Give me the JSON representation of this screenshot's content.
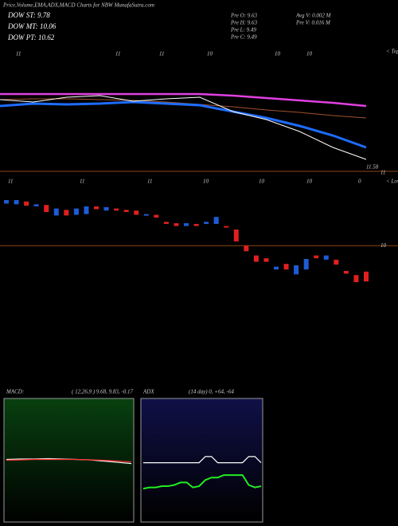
{
  "header": {
    "title": "Price,Volume,EMA,ADX,MACD Charts for NBW MunafaSutra.com",
    "dow": [
      "DOW ST: 9.78",
      "DOW MT: 10.06",
      "DOW PT: 10.62"
    ],
    "pre": [
      "Pre  O: 9.63",
      "Pre  H: 9.63",
      "Pre  L: 9.49",
      "Pre  C: 9.49"
    ],
    "volume": [
      "Avg V: 0.002  M",
      "Pre  V: 0.016  M"
    ]
  },
  "chart_data": [
    {
      "type": "line",
      "categories": [
        null,
        null,
        null,
        null,
        null,
        null,
        null,
        null,
        null,
        null,
        null,
        null
      ],
      "ylim": [
        0,
        160
      ],
      "top_labels": [
        "11",
        "11",
        "11",
        "10",
        "10",
        "10"
      ],
      "tops": "< Tops",
      "bottom_labels": [
        "11",
        "11",
        "11",
        "10",
        "10",
        "10",
        "0",
        "11"
      ],
      "lows": "< Lows",
      "annotation": "11.58",
      "series": [
        {
          "color": "#e040e0",
          "width": 2.5,
          "values": [
            97,
            97,
            97,
            97,
            97,
            97,
            97,
            95,
            92,
            89,
            86,
            82
          ]
        },
        {
          "color": "#a0522d",
          "width": 1,
          "values": [
            90,
            91,
            91,
            90,
            89,
            87,
            84,
            81,
            77,
            74,
            70,
            67
          ]
        },
        {
          "color": "#1e6cff",
          "width": 3,
          "values": [
            82,
            85,
            84,
            85,
            87,
            85,
            83,
            75,
            67,
            57,
            45,
            30
          ]
        },
        {
          "color": "#ffffff",
          "width": 1,
          "values": [
            90,
            87,
            93,
            95,
            88,
            91,
            93,
            75,
            65,
            50,
            30,
            15
          ]
        }
      ]
    },
    {
      "type": "candlestick",
      "categories": [
        null,
        null,
        null,
        null,
        null,
        null,
        null,
        null,
        null,
        null,
        null,
        null,
        null,
        null,
        null,
        null,
        null,
        null,
        null,
        null,
        null,
        null,
        null,
        null,
        null,
        null,
        null,
        null,
        null,
        null,
        null,
        null,
        null,
        null,
        null,
        null,
        null
      ],
      "ylim": [
        8.18,
        11.08
      ],
      "yticks": [
        10
      ],
      "up_color": "#1e5bd6",
      "down_color": "#e02020",
      "open": [
        10.6,
        10.59,
        10.63,
        10.56,
        10.58,
        10.43,
        10.51,
        10.44,
        10.45,
        10.56,
        10.5,
        10.53,
        10.51,
        10.5,
        10.43,
        10.44,
        10.34,
        10.32,
        10.28,
        10.31,
        10.31,
        10.31,
        10.28,
        10.23,
        10.0,
        9.86,
        9.82,
        9.66,
        9.74,
        9.59,
        9.66,
        9.86,
        9.8,
        9.8,
        9.64,
        9.58,
        9.63
      ],
      "close": [
        10.65,
        10.65,
        10.57,
        10.59,
        10.48,
        10.53,
        10.43,
        10.53,
        10.56,
        10.52,
        10.55,
        10.5,
        10.48,
        10.44,
        10.45,
        10.4,
        10.31,
        10.28,
        10.32,
        10.28,
        10.34,
        10.41,
        10.26,
        10.06,
        9.92,
        9.77,
        9.77,
        9.7,
        9.66,
        9.72,
        9.81,
        9.82,
        9.86,
        9.73,
        9.6,
        9.48,
        9.49
      ]
    },
    {
      "type": "line",
      "title": "MACD:",
      "subtitle": "( 12,26,9 ) 9.68, 9.83, -0.17",
      "categories": [
        null,
        null,
        null,
        null,
        null,
        null,
        null,
        null,
        null,
        null
      ],
      "ylim": [
        -1.5,
        1.5
      ],
      "series": [
        {
          "color": "#ffffff",
          "width": 1.2,
          "values": [
            0.02,
            0.03,
            0.03,
            0.04,
            0.03,
            0.02,
            0.01,
            -0.02,
            -0.05,
            -0.08
          ]
        },
        {
          "color": "#ff3030",
          "width": 1.2,
          "values": [
            0.0,
            0.01,
            0.02,
            0.02,
            0.02,
            0.02,
            0.01,
            0.0,
            -0.02,
            -0.04
          ]
        }
      ]
    },
    {
      "type": "line",
      "title": "ADX",
      "subtitle": "(14  day) 0, +64, -64",
      "categories": [
        null,
        null,
        null,
        null,
        null,
        null,
        null,
        null,
        null,
        null,
        null,
        null,
        null,
        null,
        null,
        null,
        null,
        null,
        null,
        null
      ],
      "ylim": [
        0,
        100
      ],
      "series": [
        {
          "color": "#ffffff",
          "width": 1.2,
          "values": [
            48,
            48,
            48,
            48,
            48,
            48,
            48,
            48,
            48,
            48,
            53,
            53,
            48,
            48,
            48,
            48,
            48,
            53,
            53,
            48
          ]
        },
        {
          "color": "#22ee22",
          "width": 2,
          "values": [
            27,
            28,
            28,
            29,
            29,
            30,
            32,
            32,
            28,
            29,
            34,
            36,
            36,
            38,
            38,
            38,
            38,
            30,
            28,
            29
          ]
        }
      ]
    }
  ]
}
